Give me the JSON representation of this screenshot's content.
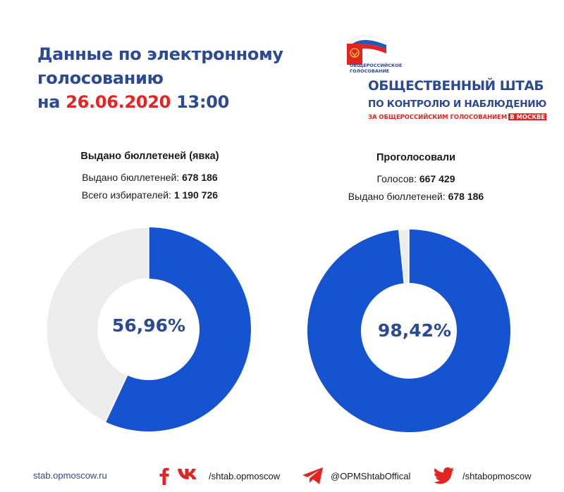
{
  "title": {
    "line1": "Данные по электронному",
    "line2": "голосованию",
    "prefix": "на",
    "date": "26.06.2020",
    "time": "13:00"
  },
  "logo": {
    "small_line1": "ОБЩЕРОССИЙСКОЕ",
    "small_line2": "ГОЛОСОВАНИЕ",
    "main": "ОБЩЕСТВЕННЫЙ ШТАБ",
    "sub": "ПО КОНТРОЛЮ И НАБЛЮДЕНИЮ",
    "sub2": "ЗА ОБЩЕРОССИЙСКИМ ГОЛОСОВАНИЕМ",
    "badge": "В МОСКВЕ"
  },
  "colors": {
    "blue": "#1553d0",
    "grey": "#ececec",
    "navy": "#2b4a93",
    "red": "#e52421"
  },
  "chart_data": [
    {
      "type": "pie",
      "title": "Выдано бюллетеней (явка)",
      "stats": [
        {
          "label": "Выдано бюллетеней:",
          "value": "678 186"
        },
        {
          "label": "Всего избирателей:",
          "value": "1 190 726"
        }
      ],
      "center_label": "56,96%",
      "values": [
        56.96,
        43.04
      ],
      "colors": [
        "#1553d0",
        "#ececec"
      ]
    },
    {
      "type": "pie",
      "title": "Проголосовали",
      "stats": [
        {
          "label": "Голосов:",
          "value": "667 429"
        },
        {
          "label": "Выдано бюллетеней:",
          "value": "678 186"
        }
      ],
      "center_label": "98,42%",
      "values": [
        98.42,
        1.58
      ],
      "colors": [
        "#1553d0",
        "#ececec"
      ]
    }
  ],
  "footer": {
    "site": "stab.opmoscow.ru",
    "vk": "/shtab.opmoscow",
    "telegram": "@OPMShtabOffical",
    "twitter": "/shtabopmoscow"
  }
}
